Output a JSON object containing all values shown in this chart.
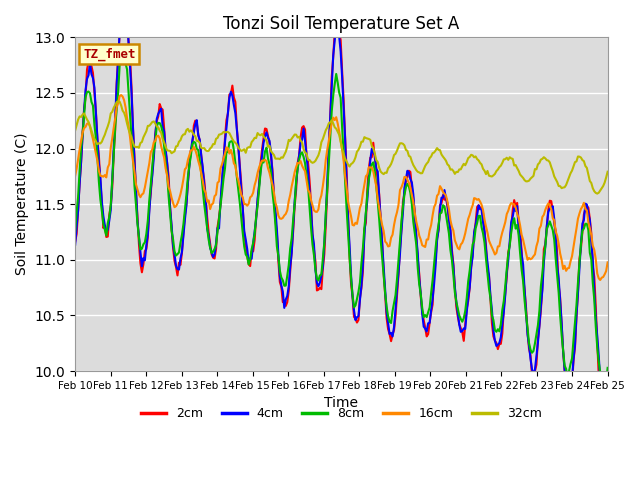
{
  "title": "Tonzi Soil Temperature Set A",
  "xlabel": "Time",
  "ylabel": "Soil Temperature (C)",
  "ylim": [
    10.0,
    13.0
  ],
  "bg_color": "#dcdcdc",
  "fig_color": "#ffffff",
  "legend_label": "TZ_fmet",
  "x_tick_labels": [
    "Feb 10",
    "Feb 11",
    "Feb 12",
    "Feb 13",
    "Feb 14",
    "Feb 15",
    "Feb 16",
    "Feb 17",
    "Feb 18",
    "Feb 19",
    "Feb 20",
    "Feb 21",
    "Feb 22",
    "Feb 23",
    "Feb 24",
    "Feb 25"
  ],
  "series_colors": [
    "#ff0000",
    "#0000ff",
    "#00bb00",
    "#ff8800",
    "#bbbb00"
  ],
  "series_names": [
    "2cm",
    "4cm",
    "8cm",
    "16cm",
    "32cm"
  ],
  "line_width": 1.5,
  "yticks": [
    10.0,
    10.5,
    11.0,
    11.5,
    12.0,
    12.5,
    13.0
  ]
}
